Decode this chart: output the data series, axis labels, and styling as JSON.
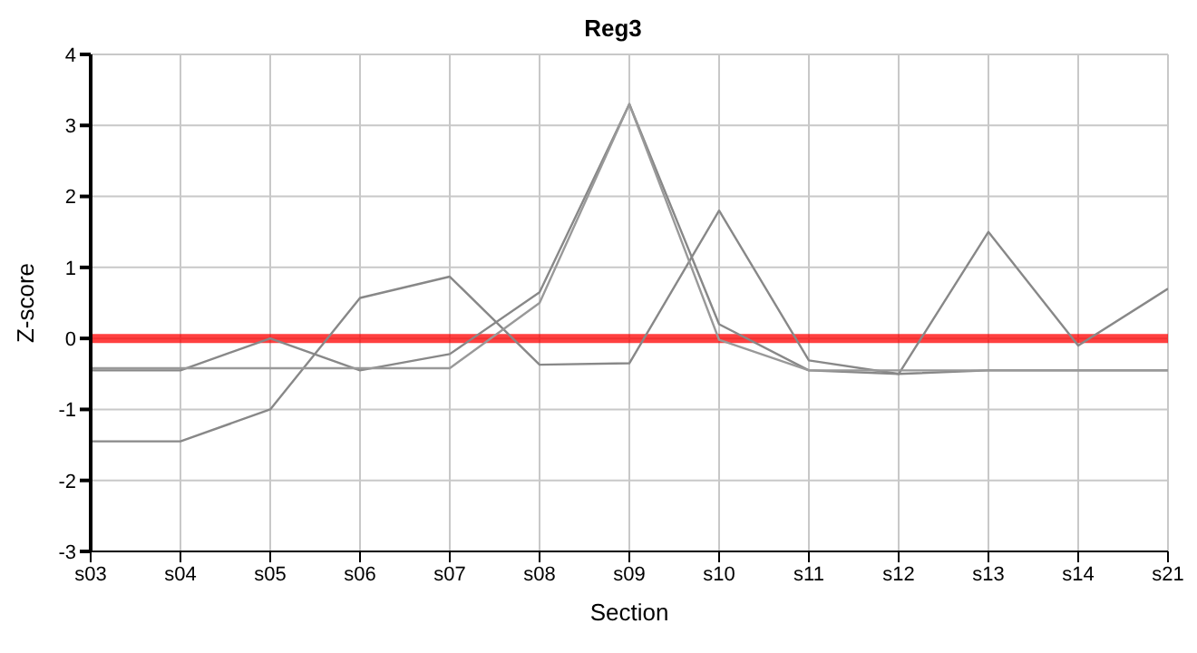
{
  "chart_data": {
    "type": "line",
    "title": "Reg3",
    "xlabel": "Section",
    "ylabel": "Z-score",
    "categories": [
      "s03",
      "s04",
      "s05",
      "s06",
      "s07",
      "s08",
      "s09",
      "s10",
      "s11",
      "s12",
      "s13",
      "s14",
      "s21"
    ],
    "series": [
      {
        "color": "#888888",
        "values": [
          -1.45,
          -1.45,
          -1.0,
          0.57,
          0.87,
          -0.37,
          -0.35,
          1.8,
          -0.31,
          -0.5,
          1.5,
          -0.1,
          0.7
        ]
      },
      {
        "color": "#888888",
        "values": [
          -0.45,
          -0.45,
          0.0,
          -0.45,
          -0.22,
          0.65,
          3.3,
          0.2,
          -0.45,
          -0.5,
          -0.45,
          -0.45,
          -0.45
        ]
      },
      {
        "color": "#999999",
        "values": [
          -0.42,
          -0.42,
          -0.42,
          -0.42,
          -0.42,
          0.5,
          3.3,
          -0.02,
          -0.45,
          -0.45,
          -0.45,
          -0.45,
          -0.45
        ]
      }
    ],
    "ref_lines": [
      {
        "axis": "y",
        "value": 0,
        "color": "#ff0000"
      }
    ],
    "ylim": [
      -3,
      4
    ],
    "yticks": [
      -3,
      -2,
      -1,
      0,
      1,
      2,
      3,
      4
    ],
    "grid": true,
    "marker": "none",
    "line_style": "solid"
  }
}
